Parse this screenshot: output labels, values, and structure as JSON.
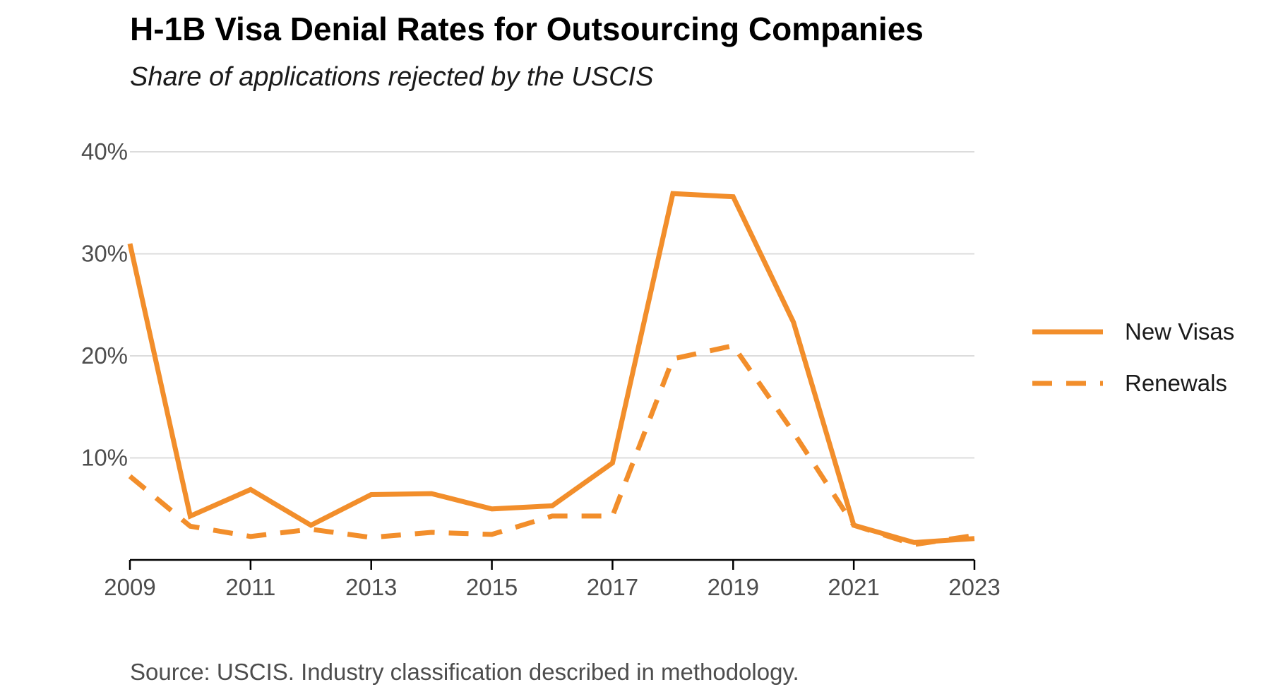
{
  "chart_data": {
    "type": "line",
    "title": "H-1B Visa Denial Rates for Outsourcing Companies",
    "subtitle": "Share of applications rejected by the USCIS",
    "caption": "Source: USCIS. Industry classification described in methodology.",
    "xlabel": "",
    "ylabel": "",
    "x": [
      2009,
      2010,
      2011,
      2012,
      2013,
      2014,
      2015,
      2016,
      2017,
      2018,
      2019,
      2020,
      2021,
      2022,
      2023
    ],
    "xlim": [
      2009,
      2023
    ],
    "ylim": [
      0,
      40
    ],
    "x_ticks": [
      2009,
      2011,
      2013,
      2015,
      2017,
      2019,
      2021,
      2023
    ],
    "x_tick_labels": [
      "2009",
      "2011",
      "2013",
      "2015",
      "2017",
      "2019",
      "2021",
      "2023"
    ],
    "y_ticks": [
      10,
      20,
      30,
      40
    ],
    "y_tick_labels": [
      "10%",
      "20%",
      "30%",
      "40%"
    ],
    "grid": true,
    "legend_position": "right",
    "color": "#f28e2b",
    "series": [
      {
        "name": "New Visas",
        "line_style": "solid",
        "values": [
          31.0,
          4.3,
          6.9,
          3.4,
          6.4,
          6.5,
          5.0,
          5.3,
          9.5,
          35.9,
          35.6,
          23.3,
          3.4,
          1.7,
          2.1
        ]
      },
      {
        "name": "Renewals",
        "line_style": "dashed",
        "values": [
          8.2,
          3.3,
          2.3,
          3.0,
          2.2,
          2.7,
          2.5,
          4.3,
          4.3,
          19.7,
          21.0,
          12.5,
          3.4,
          1.5,
          2.4
        ]
      }
    ]
  }
}
